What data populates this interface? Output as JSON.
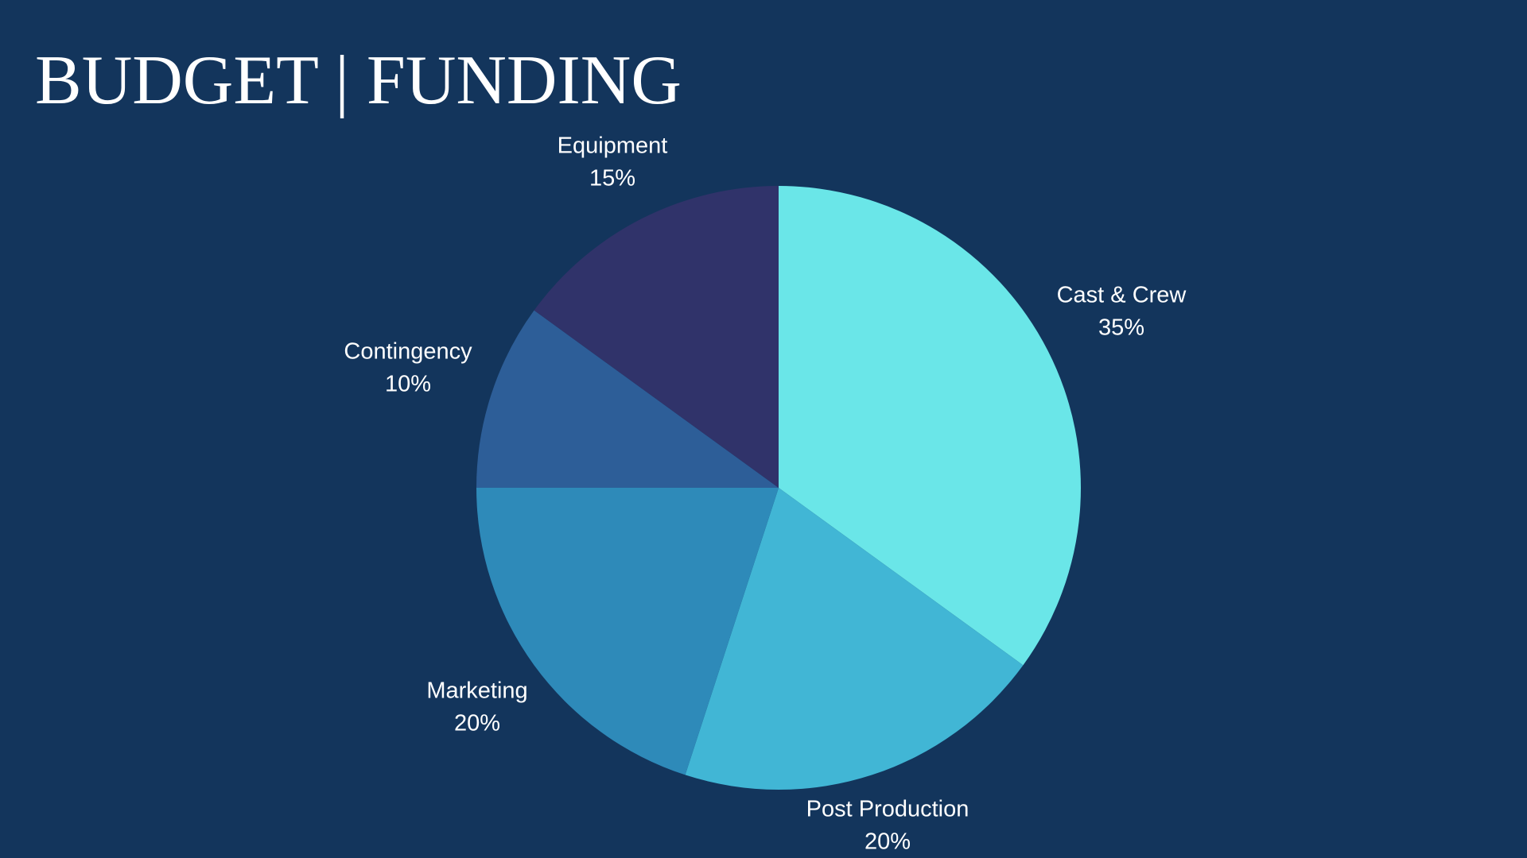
{
  "slide": {
    "title": "BUDGET | FUNDING",
    "background_color": "#13355c"
  },
  "chart_data": {
    "type": "pie",
    "categories": [
      "Cast & Crew",
      "Post Production",
      "Marketing",
      "Contingency",
      "Equipment"
    ],
    "values": [
      35,
      20,
      20,
      10,
      15
    ],
    "value_labels": [
      "35%",
      "20%",
      "20%",
      "10%",
      "15%"
    ],
    "colors": [
      "#6ae6e8",
      "#41b6d5",
      "#2e8ab9",
      "#2d5e98",
      "#30336a"
    ],
    "start": "12 o'clock",
    "direction": "clockwise",
    "legend": "none",
    "labels": "outside slices"
  }
}
